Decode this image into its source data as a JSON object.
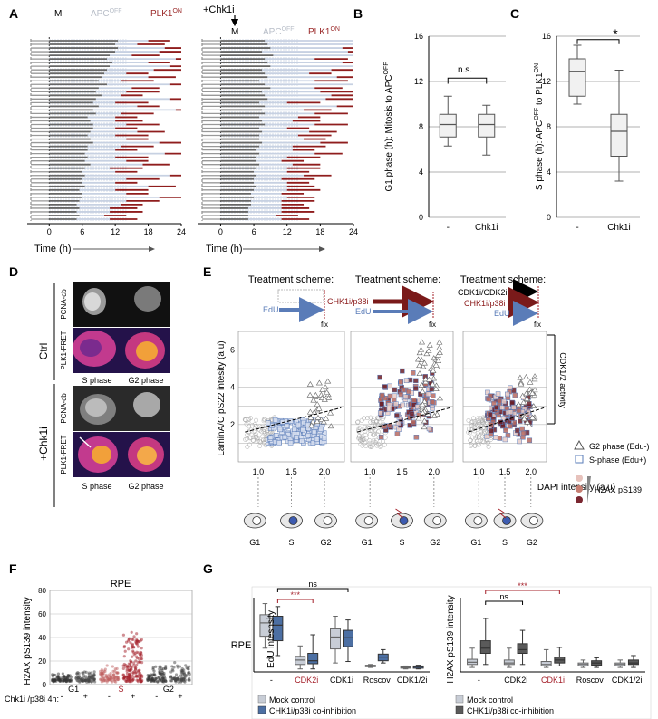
{
  "panel_letters": {
    "a": "A",
    "b": "B",
    "c": "C",
    "d": "D",
    "e": "E",
    "f": "F",
    "g": "G"
  },
  "chart_data": [
    {
      "panel": "A",
      "type": "timeline",
      "xlabel": "Time (h)",
      "xticks": [
        "0",
        "6",
        "12",
        "18",
        "24"
      ],
      "xlim": [
        -4,
        24
      ],
      "markers": {
        "m": "M",
        "apc": "APC",
        "apc_sup": "OFF",
        "plk": "PLK1",
        "plk_sup": "ON"
      },
      "treatment_label": "+Chk1i",
      "rows": 50,
      "left_segments": [
        [
          0,
          12.5,
          18
        ],
        [
          0,
          12.0,
          16
        ],
        [
          0,
          12.5,
          21
        ],
        [
          0,
          12.0,
          20
        ],
        [
          0,
          11.0,
          15
        ],
        [
          0,
          10.5,
          23
        ],
        [
          0,
          11.5,
          18
        ],
        [
          0,
          11.0,
          22
        ],
        [
          0,
          10.5,
          19
        ],
        [
          0,
          10.0,
          14
        ],
        [
          0,
          9.5,
          18
        ],
        [
          0,
          9.0,
          13
        ],
        [
          0,
          10.5,
          22
        ],
        [
          0,
          9.0,
          15
        ],
        [
          0,
          8.5,
          14
        ],
        [
          0,
          9.5,
          13
        ],
        [
          0,
          8.5,
          22
        ],
        [
          0,
          8.0,
          12
        ],
        [
          0,
          9.0,
          16
        ],
        [
          0,
          8.0,
          23
        ],
        [
          0,
          8.5,
          13
        ],
        [
          0,
          7.0,
          12
        ],
        [
          0,
          7.5,
          12
        ],
        [
          0,
          8.0,
          14
        ],
        [
          0,
          8.0,
          12
        ],
        [
          0,
          7.5,
          16
        ],
        [
          0,
          7.0,
          12
        ],
        [
          0,
          7.5,
          14
        ],
        [
          0,
          8.0,
          20
        ],
        [
          0,
          7.0,
          13
        ],
        [
          0,
          7.0,
          12
        ],
        [
          0,
          6.5,
          21
        ],
        [
          0,
          7.0,
          12
        ],
        [
          0,
          6.5,
          14
        ],
        [
          0,
          7.5,
          17
        ],
        [
          0,
          6.5,
          11
        ],
        [
          0,
          6.0,
          12
        ],
        [
          0,
          6.5,
          22
        ],
        [
          0,
          6.0,
          14
        ],
        [
          0,
          6.0,
          12
        ],
        [
          0,
          6.5,
          18
        ],
        [
          0,
          5.5,
          12
        ],
        [
          0,
          6.0,
          14
        ],
        [
          0,
          6.0,
          20
        ],
        [
          0,
          5.5,
          14
        ],
        [
          0,
          5.0,
          13
        ],
        [
          0,
          5.5,
          11
        ],
        [
          0,
          5.0,
          11
        ],
        [
          0,
          5.5,
          10
        ],
        [
          0,
          5.0,
          11
        ]
      ],
      "right_segments": [
        [
          0,
          8.0,
          24
        ],
        [
          0,
          8.5,
          24
        ],
        [
          0,
          9.0,
          22
        ],
        [
          0,
          7.5,
          23
        ],
        [
          0,
          9.5,
          24
        ],
        [
          0,
          8.0,
          17
        ],
        [
          0,
          8.5,
          22
        ],
        [
          0,
          9.0,
          24
        ],
        [
          0,
          7.5,
          20
        ],
        [
          0,
          8.0,
          16
        ],
        [
          0,
          8.5,
          21
        ],
        [
          0,
          7.0,
          17
        ],
        [
          0,
          8.0,
          24
        ],
        [
          0,
          9.0,
          17
        ],
        [
          0,
          7.5,
          18
        ],
        [
          0,
          8.0,
          20
        ],
        [
          0,
          8.5,
          19
        ],
        [
          0,
          7.0,
          12
        ],
        [
          0,
          8.0,
          21
        ],
        [
          0,
          7.5,
          15
        ],
        [
          0,
          8.0,
          17
        ],
        [
          0,
          7.0,
          14
        ],
        [
          0,
          7.5,
          13
        ],
        [
          0,
          8.0,
          17
        ],
        [
          0,
          7.0,
          12
        ],
        [
          0,
          7.5,
          16
        ],
        [
          0,
          7.0,
          14
        ],
        [
          0,
          7.0,
          15
        ],
        [
          0,
          7.5,
          18
        ],
        [
          0,
          7.0,
          13
        ],
        [
          0,
          6.5,
          13
        ],
        [
          0,
          7.0,
          17
        ],
        [
          0,
          6.5,
          12
        ],
        [
          0,
          6.5,
          11
        ],
        [
          0,
          7.0,
          13
        ],
        [
          0,
          6.5,
          12
        ],
        [
          0,
          6.0,
          12
        ],
        [
          0,
          6.5,
          15
        ],
        [
          0,
          6.0,
          11
        ],
        [
          0,
          6.0,
          12
        ],
        [
          0,
          6.5,
          12
        ],
        [
          0,
          6.0,
          12
        ],
        [
          0,
          5.5,
          11
        ],
        [
          0,
          6.0,
          12
        ],
        [
          0,
          5.5,
          11
        ],
        [
          0,
          5.5,
          11
        ],
        [
          0,
          5.0,
          11
        ],
        [
          0,
          5.0,
          11
        ],
        [
          0,
          5.0,
          10
        ],
        [
          0,
          5.0,
          11
        ]
      ]
    },
    {
      "panel": "B",
      "type": "box",
      "ylabel": "G1 phase (h):  Mitosis to APC",
      "ylabel_sup": "OFF",
      "yticks": [
        "0",
        "4",
        "8",
        "12",
        "16"
      ],
      "ylim": [
        0,
        16
      ],
      "categories": [
        "-",
        "Chk1i"
      ],
      "boxes": [
        {
          "min": 6.3,
          "q1": 7.1,
          "median": 8.2,
          "q3": 9.1,
          "max": 10.7
        },
        {
          "min": 5.5,
          "q1": 7.1,
          "median": 8.2,
          "q3": 9.1,
          "max": 9.9
        }
      ],
      "annotation": "n.s."
    },
    {
      "panel": "C",
      "type": "box",
      "ylabel": "S phase (h):  APC",
      "ylabel_sup1": "OFF",
      "ylabel_mid": " to PLK1",
      "ylabel_sup2": "ON",
      "yticks": [
        "0",
        "4",
        "8",
        "12",
        "16"
      ],
      "ylim": [
        0,
        16
      ],
      "categories": [
        "-",
        "Chk1i"
      ],
      "boxes": [
        {
          "min": 10.0,
          "q1": 10.7,
          "median": 12.9,
          "q3": 14.0,
          "max": 15.2
        },
        {
          "min": 3.2,
          "q1": 5.4,
          "median": 7.6,
          "q3": 9.1,
          "max": 13.0
        }
      ],
      "annotation": "*"
    },
    {
      "panel": "D",
      "type": "image-grid",
      "row_groups": [
        "Ctrl",
        "+Chk1i"
      ],
      "row_labels": [
        "PCNA-cb",
        "PLK1-FRET"
      ],
      "col_labels": [
        "S phase",
        "G2 phase"
      ]
    },
    {
      "panel": "E",
      "type": "scatter",
      "titles": [
        "Treatment scheme:",
        "Treatment scheme:",
        "Treatment scheme:"
      ],
      "scheme_labels": {
        "edu": "EdU",
        "fix": "fix",
        "chk": "CHK1i/p38i",
        "cdk": "CDK1i/CDK2i"
      },
      "ylabel": "LaminA/C pS22 intesity (a.u)",
      "xlabel": "DAPI intensity (a.u)",
      "yticks": [
        "2",
        "4",
        "6"
      ],
      "xticks": [
        "1.0",
        "1.5",
        "2.0"
      ],
      "ylim": [
        0,
        7
      ],
      "xlim": [
        0.7,
        2.3
      ],
      "phase_labels": [
        "G1",
        "S",
        "G2"
      ],
      "legend": {
        "g2": "G2 phase (Edu-)",
        "s": "S-phase (Edu+)",
        "h2ax": "H2AX pS139"
      },
      "bracket_label": "CDK1/2 activity"
    },
    {
      "panel": "F",
      "type": "strip",
      "title": "RPE",
      "ylabel": "H2AX pS139 intensity",
      "yticks": [
        "0",
        "20",
        "40",
        "60",
        "80"
      ],
      "ylim": [
        0,
        80
      ],
      "groups": [
        "G1",
        "S",
        "G2"
      ],
      "treat_label": "Chk1i /p38i 4h:",
      "signs": [
        "-",
        "+",
        "-",
        "+",
        "-",
        "+"
      ],
      "series_spread": [
        6,
        8,
        11,
        40,
        14,
        15
      ]
    },
    {
      "panel": "G",
      "type": "box",
      "row_label": "RPE",
      "left": {
        "ylabel": "EdU intesnsity",
        "categories": [
          "-",
          "CDK2i",
          "CDK1i",
          "Roscov",
          "CDK1/2i"
        ],
        "boxes": [
          [
            {
              "min": 0.32,
              "q1": 0.48,
              "median": 0.66,
              "q3": 0.77,
              "max": 0.92
            },
            {
              "min": 0.22,
              "q1": 0.42,
              "median": 0.63,
              "q3": 0.75,
              "max": 0.88
            }
          ],
          [
            {
              "min": 0.04,
              "q1": 0.1,
              "median": 0.16,
              "q3": 0.21,
              "max": 0.35
            },
            {
              "min": 0.04,
              "q1": 0.11,
              "median": 0.15,
              "q3": 0.25,
              "max": 0.5
            }
          ],
          [
            {
              "min": 0.12,
              "q1": 0.31,
              "median": 0.47,
              "q3": 0.58,
              "max": 0.75
            },
            {
              "min": 0.14,
              "q1": 0.34,
              "median": 0.46,
              "q3": 0.56,
              "max": 0.7
            }
          ],
          [
            {
              "min": 0.06,
              "q1": 0.07,
              "median": 0.08,
              "q3": 0.09,
              "max": 0.1
            },
            {
              "min": 0.12,
              "q1": 0.15,
              "median": 0.2,
              "q3": 0.24,
              "max": 0.3
            }
          ],
          [
            {
              "min": 0.04,
              "q1": 0.05,
              "median": 0.06,
              "q3": 0.07,
              "max": 0.08
            },
            {
              "min": 0.04,
              "q1": 0.05,
              "median": 0.07,
              "q3": 0.08,
              "max": 0.09
            }
          ]
        ],
        "sig": [
          {
            "label": "***"
          },
          {
            "label": "ns"
          }
        ]
      },
      "right": {
        "ylabel": "H2AX pS139 intensity",
        "categories": [
          "-",
          "CDK2i",
          "CDK1i",
          "Roscov",
          "CDK1/2i"
        ],
        "boxes": [
          [
            {
              "min": 0.06,
              "q1": 0.1,
              "median": 0.13,
              "q3": 0.17,
              "max": 0.32
            },
            {
              "min": 0.1,
              "q1": 0.25,
              "median": 0.32,
              "q3": 0.42,
              "max": 0.72
            }
          ],
          [
            {
              "min": 0.06,
              "q1": 0.1,
              "median": 0.12,
              "q3": 0.16,
              "max": 0.32
            },
            {
              "min": 0.1,
              "q1": 0.25,
              "median": 0.3,
              "q3": 0.38,
              "max": 0.56
            }
          ],
          [
            {
              "min": 0.06,
              "q1": 0.08,
              "median": 0.1,
              "q3": 0.14,
              "max": 0.3
            },
            {
              "min": 0.08,
              "q1": 0.12,
              "median": 0.16,
              "q3": 0.2,
              "max": 0.33
            }
          ],
          [
            {
              "min": 0.06,
              "q1": 0.08,
              "median": 0.1,
              "q3": 0.12,
              "max": 0.16
            },
            {
              "min": 0.06,
              "q1": 0.09,
              "median": 0.12,
              "q3": 0.15,
              "max": 0.19
            }
          ],
          [
            {
              "min": 0.06,
              "q1": 0.08,
              "median": 0.1,
              "q3": 0.12,
              "max": 0.16
            },
            {
              "min": 0.06,
              "q1": 0.1,
              "median": 0.12,
              "q3": 0.16,
              "max": 0.22
            }
          ]
        ],
        "sig": [
          {
            "label": "***"
          },
          {
            "label": "ns"
          }
        ]
      },
      "legend": [
        "Mock control",
        "CHK1i/p38i co-inhibition"
      ],
      "colors": {
        "mock": "#c8cdd6",
        "chk": "#4c6fa3",
        "chk_dark": "#5a5a5a",
        "red": "#a4202a"
      }
    }
  ]
}
